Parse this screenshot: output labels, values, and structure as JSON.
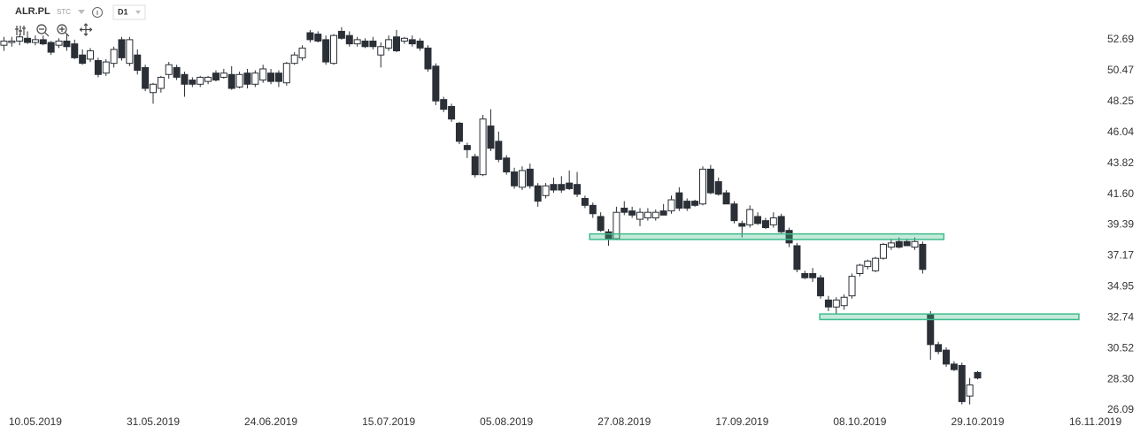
{
  "chart_data": {
    "type": "candlestick",
    "title": "ALR.PL",
    "subtitle": "STC",
    "timeframe": "D1",
    "categories": [
      null,
      null,
      null,
      null,
      "10.05.2019",
      null,
      null,
      null,
      null,
      null,
      null,
      null,
      null,
      null,
      null,
      null,
      null,
      null,
      null,
      "31.05.2019",
      null,
      null,
      null,
      null,
      null,
      null,
      null,
      null,
      null,
      null,
      null,
      null,
      null,
      null,
      "24.06.2019",
      null,
      null,
      null,
      null,
      null,
      null,
      null,
      null,
      null,
      null,
      null,
      null,
      null,
      null,
      "15.07.2019",
      null,
      null,
      null,
      null,
      null,
      null,
      null,
      null,
      null,
      null,
      null,
      null,
      null,
      null,
      "05.08.2019",
      null,
      null,
      null,
      null,
      null,
      null,
      null,
      null,
      null,
      null,
      null,
      null,
      null,
      null,
      "27.08.2019",
      null,
      null,
      null,
      null,
      null,
      null,
      null,
      null,
      null,
      null,
      null,
      null,
      null,
      null,
      "17.09.2019",
      null,
      null,
      null,
      null,
      null,
      null,
      null,
      null,
      null,
      null,
      null,
      null,
      null,
      null,
      "08.10.2019",
      null,
      null,
      null,
      null,
      null,
      null,
      null,
      null,
      null,
      null,
      null,
      null,
      null,
      null,
      "29.10.2019",
      null,
      null,
      null,
      null,
      null,
      null,
      null,
      null,
      null,
      null,
      null,
      null,
      null,
      null,
      "16.11.2019"
    ],
    "open": [
      52.3,
      52.5,
      52.6,
      52.8,
      52.5,
      52.7,
      52.5,
      52.3,
      52.6,
      52.4,
      51.6,
      51.3,
      51.2,
      50.3,
      51.0,
      52.7,
      51.0,
      51.6,
      50.7,
      48.9,
      49.2,
      50.2,
      50.7,
      50.2,
      49.8,
      49.5,
      49.7,
      50.3,
      50.0,
      50.2,
      49.3,
      50.3,
      49.5,
      49.8,
      50.3,
      50.3,
      49.6,
      51.0,
      51.4,
      53.2,
      53.1,
      52.7,
      51.0,
      53.3,
      53.0,
      52.4,
      52.6,
      52.6,
      51.6,
      52.1,
      52.9,
      52.6,
      52.7,
      52.6,
      52.1,
      50.8,
      48.4,
      47.9,
      46.7,
      45.1,
      44.3,
      43.0,
      46.5,
      45.4,
      44.2,
      43.2,
      42.1,
      43.4,
      42.2,
      41.5,
      42.3,
      42.3,
      42.4,
      42.3,
      41.3,
      40.8,
      40.0,
      38.9,
      38.4,
      40.6,
      40.4,
      39.8,
      39.9,
      39.9,
      40.4,
      40.4,
      41.7,
      41.1,
      41.1,
      40.9,
      43.4,
      42.5,
      41.7,
      40.9,
      39.5,
      39.4,
      40.0,
      39.7,
      39.4,
      40.0,
      39.0,
      37.9,
      35.9,
      35.9,
      35.6,
      34.0,
      33.5,
      33.6,
      34.3,
      35.9,
      36.4,
      36.1,
      37.0,
      37.8,
      38.2,
      38.2,
      37.8,
      38.0,
      33.0,
      30.8,
      30.4,
      29.4,
      29.3,
      27.1,
      28.8,
      null,
      null,
      null,
      null,
      null,
      null,
      null,
      null,
      null,
      null,
      null,
      null,
      null,
      null,
      null
    ],
    "high": [
      52.9,
      52.9,
      53.1,
      53.3,
      53.0,
      53.0,
      52.6,
      52.8,
      53.1,
      52.7,
      52.0,
      52.1,
      51.4,
      51.3,
      52.2,
      52.9,
      52.9,
      52.0,
      50.9,
      49.6,
      50.1,
      51.1,
      50.9,
      50.4,
      50.0,
      50.1,
      50.1,
      50.5,
      50.6,
      50.8,
      50.4,
      50.6,
      50.5,
      50.9,
      50.6,
      50.5,
      51.1,
      51.8,
      52.3,
      53.4,
      53.3,
      53.0,
      53.1,
      53.6,
      53.3,
      52.9,
      52.8,
      52.9,
      52.5,
      53.0,
      53.4,
      52.9,
      53.0,
      52.8,
      52.3,
      51.0,
      48.6,
      48.1,
      46.8,
      45.3,
      44.5,
      47.3,
      47.7,
      46.1,
      44.4,
      43.5,
      43.6,
      43.8,
      42.4,
      42.4,
      42.8,
      42.9,
      43.3,
      43.2,
      41.5,
      41.0,
      40.3,
      39.1,
      40.7,
      41.1,
      40.7,
      40.6,
      40.6,
      40.5,
      40.9,
      41.5,
      42.1,
      41.3,
      41.2,
      43.6,
      43.7,
      42.8,
      41.9,
      41.1,
      39.7,
      40.8,
      40.3,
      39.9,
      40.3,
      40.2,
      39.2,
      38.1,
      36.1,
      36.3,
      35.8,
      34.3,
      34.2,
      34.4,
      35.9,
      36.6,
      36.9,
      37.1,
      38.1,
      38.4,
      38.5,
      38.4,
      38.5,
      38.2,
      33.2,
      31.0,
      30.6,
      29.6,
      29.5,
      28.4,
      28.9,
      null,
      null,
      null,
      null,
      null,
      null,
      null,
      null,
      null,
      null,
      null,
      null,
      null,
      null,
      null
    ],
    "low": [
      51.9,
      52.2,
      52.3,
      52.4,
      52.3,
      52.3,
      51.6,
      52.1,
      51.9,
      51.3,
      50.9,
      51.1,
      50.0,
      50.1,
      50.7,
      51.2,
      50.8,
      50.2,
      49.0,
      48.1,
      48.9,
      49.9,
      49.8,
      48.6,
      49.3,
      49.3,
      49.5,
      49.7,
      49.9,
      49.1,
      49.2,
      49.2,
      49.3,
      49.6,
      49.5,
      49.3,
      49.4,
      50.9,
      51.2,
      52.5,
      52.5,
      50.9,
      50.9,
      52.7,
      52.2,
      52.2,
      52.1,
      52.0,
      50.7,
      51.9,
      51.8,
      52.4,
      52.2,
      51.9,
      50.4,
      48.0,
      47.5,
      46.8,
      45.2,
      44.2,
      42.8,
      42.9,
      44.7,
      43.9,
      43.0,
      42.0,
      41.9,
      42.0,
      40.7,
      41.3,
      41.7,
      41.7,
      41.9,
      41.4,
      40.6,
      39.9,
      38.9,
      37.9,
      38.3,
      40.1,
      39.9,
      39.3,
      39.7,
      39.7,
      40.1,
      40.2,
      40.4,
      40.4,
      40.7,
      40.8,
      41.6,
      41.5,
      40.9,
      39.5,
      38.5,
      39.2,
      39.4,
      39.1,
      39.2,
      38.8,
      37.8,
      36.0,
      35.5,
      35.3,
      34.1,
      33.2,
      33.0,
      33.3,
      34.1,
      35.7,
      36.2,
      36.0,
      36.9,
      37.6,
      37.7,
      37.9,
      37.6,
      35.9,
      29.7,
      30.1,
      29.2,
      28.9,
      26.5,
      26.5,
      28.3,
      null,
      null,
      null,
      null,
      null,
      null,
      null,
      null,
      null,
      null,
      null,
      null,
      null,
      null,
      null
    ],
    "close": [
      52.6,
      52.6,
      52.9,
      52.5,
      52.7,
      52.4,
      51.8,
      52.6,
      52.2,
      51.4,
      51.0,
      51.9,
      50.2,
      51.1,
      52.0,
      51.4,
      52.7,
      50.5,
      49.2,
      49.5,
      50.0,
      50.9,
      50.0,
      49.5,
      49.5,
      50.0,
      50.0,
      49.8,
      50.3,
      49.2,
      50.2,
      49.5,
      50.3,
      50.6,
      49.7,
      49.7,
      51.0,
      51.6,
      52.1,
      52.7,
      52.6,
      51.1,
      53.0,
      52.8,
      52.4,
      52.7,
      52.2,
      52.2,
      52.2,
      52.7,
      51.9,
      52.8,
      52.4,
      52.1,
      50.6,
      48.3,
      47.7,
      47.0,
      45.4,
      44.8,
      43.0,
      47.0,
      44.9,
      44.1,
      43.2,
      42.2,
      43.3,
      42.2,
      41.1,
      42.2,
      41.9,
      41.9,
      42.0,
      41.6,
      40.8,
      40.2,
      39.0,
      38.4,
      40.3,
      40.3,
      40.1,
      40.3,
      40.3,
      40.3,
      40.1,
      41.2,
      40.6,
      40.6,
      40.8,
      43.4,
      41.7,
      41.6,
      40.9,
      39.7,
      39.3,
      40.5,
      39.5,
      39.2,
      39.9,
      38.9,
      38.1,
      36.2,
      35.6,
      35.6,
      34.3,
      33.5,
      34.0,
      34.2,
      35.7,
      36.5,
      36.8,
      37.0,
      38.0,
      38.1,
      37.8,
      37.9,
      38.2,
      36.2,
      30.8,
      30.3,
      29.4,
      29.0,
      26.7,
      27.9,
      28.4,
      null,
      null,
      null,
      null,
      null,
      null,
      null,
      null,
      null,
      null,
      null,
      null,
      null,
      null,
      null
    ],
    "up_color": "#ffffff",
    "down_color": "#2b2f36",
    "zone_color": "#3dbb8a",
    "zones": [
      {
        "x": [
          75.1,
          120.2
        ],
        "y": [
          38.35,
          38.75
        ]
      },
      {
        "x": [
          104.4,
          137.4
        ],
        "y": [
          32.6,
          33.0
        ]
      }
    ],
    "ylim": [
      25.71,
      55.55
    ],
    "yticks": [
      52.69,
      50.47,
      48.25,
      46.04,
      43.82,
      {
        "value": 41.6,
        "label": "41.60"
      },
      39.39,
      37.17,
      34.95,
      32.74,
      30.52,
      {
        "value": 28.3,
        "label": "28.30"
      },
      26.09
    ],
    "grid": false
  }
}
